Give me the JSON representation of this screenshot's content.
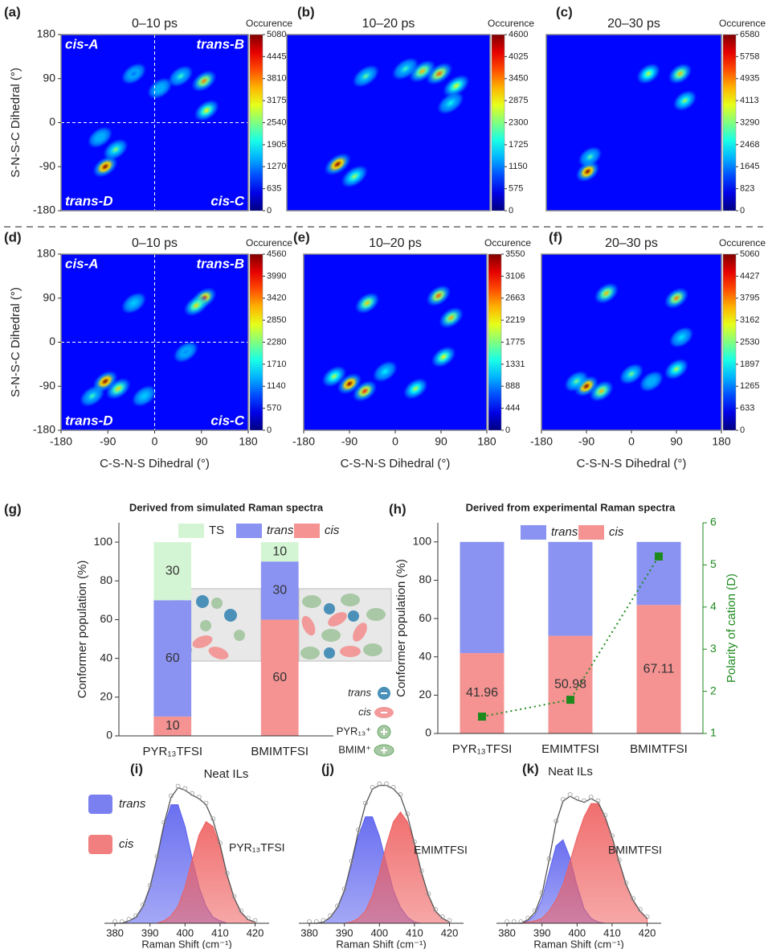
{
  "chart_data": [
    {
      "type": "heatmap",
      "panel": "(a)",
      "title": "0–10 ps",
      "colorbar_title": "Occurence",
      "colormap": "jet",
      "xlim": [
        -180,
        180
      ],
      "ylim": [
        -180,
        180
      ],
      "yticks": [
        -180,
        -90,
        0,
        90,
        180
      ],
      "ylabel": "S-N-S-C Dihedral (°)",
      "annotations": [
        "cis-A",
        "trans-B",
        "trans-D",
        "cis-C"
      ],
      "crosshair": true,
      "x": [
        -95,
        -75,
        -105,
        95,
        100,
        50,
        10,
        -40
      ],
      "y": [
        -90,
        -55,
        -30,
        85,
        25,
        95,
        70,
        100
      ],
      "values": [
        5080,
        2600,
        1500,
        3800,
        3200,
        2200,
        1500,
        1200
      ],
      "colorbar_lim": [
        0,
        5080
      ],
      "colorbar_ticks": [
        0,
        635,
        1270,
        1905,
        2540,
        3175,
        3810,
        4445,
        5080
      ]
    },
    {
      "type": "heatmap",
      "panel": "(b)",
      "title": "10–20 ps",
      "colorbar_title": "Occurence",
      "colormap": "jet",
      "xlim": [
        -180,
        180
      ],
      "ylim": [
        -180,
        180
      ],
      "x": [
        -90,
        -60,
        90,
        60,
        120,
        -40,
        30,
        110
      ],
      "y": [
        -85,
        -110,
        100,
        105,
        75,
        95,
        110,
        40
      ],
      "values": [
        4600,
        2500,
        3600,
        3200,
        2800,
        2200,
        2000,
        1800
      ],
      "colorbar_lim": [
        0,
        4600
      ],
      "colorbar_ticks": [
        0,
        575,
        1150,
        1725,
        2300,
        2875,
        3450,
        4025,
        4600
      ]
    },
    {
      "type": "heatmap",
      "panel": "(c)",
      "title": "20–30 ps",
      "colorbar_title": "Occurence",
      "colormap": "jet",
      "xlim": [
        -180,
        180
      ],
      "ylim": [
        -180,
        180
      ],
      "x": [
        -95,
        30,
        95,
        105,
        -90
      ],
      "y": [
        -100,
        100,
        100,
        45,
        -70
      ],
      "values": [
        6580,
        3800,
        4500,
        3500,
        3000
      ],
      "colorbar_lim": [
        0,
        6580
      ],
      "colorbar_ticks": [
        0,
        823,
        1645,
        2468,
        3290,
        4113,
        4935,
        5758,
        6580
      ]
    },
    {
      "type": "heatmap",
      "panel": "(d)",
      "title": "0–10 ps",
      "colorbar_title": "Occurence",
      "colormap": "jet",
      "xlim": [
        -180,
        180
      ],
      "ylim": [
        -180,
        180
      ],
      "xticks": [
        -180,
        -90,
        0,
        90,
        180
      ],
      "yticks": [
        -180,
        -90,
        0,
        90,
        180
      ],
      "xlabel": "C-S-N-S Dihedral (°)",
      "ylabel": "S-N-S-C Dihedral (°)",
      "annotations": [
        "cis-A",
        "trans-B",
        "trans-D",
        "cis-C"
      ],
      "crosshair": true,
      "x": [
        -95,
        -70,
        -120,
        95,
        80,
        -40,
        60,
        -20
      ],
      "y": [
        -80,
        -95,
        -110,
        90,
        75,
        80,
        -20,
        -110
      ],
      "values": [
        4560,
        3000,
        2000,
        4000,
        3000,
        1500,
        1200,
        1500
      ],
      "colorbar_lim": [
        0,
        4560
      ],
      "colorbar_ticks": [
        0,
        570,
        1140,
        1710,
        2280,
        2850,
        3420,
        3990,
        4560
      ]
    },
    {
      "type": "heatmap",
      "panel": "(e)",
      "title": "10–20 ps",
      "colorbar_title": "Occurence",
      "colormap": "jet",
      "xlim": [
        -180,
        180
      ],
      "ylim": [
        -180,
        180
      ],
      "xticks": [
        -180,
        -90,
        0,
        90,
        180
      ],
      "xlabel": "C-S-N-S Dihedral (°)",
      "x": [
        -90,
        -60,
        -120,
        -55,
        85,
        110,
        95,
        40,
        -20
      ],
      "y": [
        -85,
        -100,
        -70,
        80,
        95,
        50,
        -30,
        -95,
        -60
      ],
      "values": [
        3550,
        3000,
        2000,
        2400,
        2800,
        2500,
        2200,
        2000,
        1300
      ],
      "colorbar_lim": [
        0,
        3550
      ],
      "colorbar_ticks": [
        0,
        444,
        888,
        1331,
        1775,
        2219,
        2663,
        3106,
        3550
      ]
    },
    {
      "type": "heatmap",
      "panel": "(f)",
      "title": "20–30 ps",
      "colorbar_title": "Occurence",
      "colormap": "jet",
      "xlim": [
        -180,
        180
      ],
      "ylim": [
        -180,
        180
      ],
      "xticks": [
        -180,
        -90,
        0,
        90,
        180
      ],
      "xlabel": "C-S-N-S Dihedral (°)",
      "x": [
        -90,
        -60,
        -110,
        -50,
        90,
        0,
        90,
        100,
        40
      ],
      "y": [
        -90,
        -100,
        -80,
        100,
        90,
        -65,
        -55,
        10,
        -80
      ],
      "values": [
        5060,
        3500,
        2500,
        3500,
        3800,
        2500,
        2800,
        1800,
        1500
      ],
      "colorbar_lim": [
        0,
        5060
      ],
      "colorbar_ticks": [
        0,
        633,
        1265,
        1897,
        2530,
        3162,
        3795,
        4427,
        5060
      ]
    },
    {
      "type": "stacked_bar",
      "panel": "(g)",
      "title": "Derived from simulated Raman spectra",
      "ylabel": "Conformer population (%)",
      "xlabel": "Neat ILs",
      "categories": [
        "PYR₁₃TFSI",
        "BMIMTFSI"
      ],
      "series": [
        {
          "name": "TS",
          "color": "#d4f5d4",
          "italic": false,
          "show_labels": true,
          "values": [
            30,
            10
          ]
        },
        {
          "name": "trans",
          "color": "#8a93f2",
          "italic": true,
          "show_labels": true,
          "values": [
            60,
            30
          ]
        },
        {
          "name": "cis",
          "color": "#f59393",
          "italic": true,
          "show_labels": true,
          "values": [
            10,
            60
          ]
        }
      ],
      "ylim": [
        0,
        110
      ],
      "yticks": [
        0,
        20,
        40,
        60,
        80,
        100
      ],
      "inset_legend": [
        "trans",
        "cis",
        "PYR₁₃⁺",
        "BMIM⁺"
      ]
    },
    {
      "type": "stacked_bar",
      "panel": "(h)",
      "title": "Derived from experimental Raman spectra",
      "ylabel": "Conformer population (%)",
      "xlabel": "Neat ILs",
      "categories": [
        "PYR₁₃TFSI",
        "EMIMTFSI",
        "BMIMTFSI"
      ],
      "series": [
        {
          "name": "trans",
          "color": "#8a93f2",
          "italic": true,
          "show_labels": false,
          "values": [
            58.04,
            49.02,
            32.89
          ]
        },
        {
          "name": "cis",
          "color": "#f59393",
          "italic": true,
          "show_labels": true,
          "values": [
            41.96,
            50.98,
            67.11
          ]
        }
      ],
      "ylim": [
        0,
        110
      ],
      "yticks": [
        0,
        20,
        40,
        60,
        80,
        100
      ],
      "y2label": "Polarity of cation (D)",
      "y2lim": [
        1,
        6
      ],
      "y2ticks": [
        1,
        2,
        3,
        4,
        5,
        6
      ],
      "y2_series": {
        "color": "#1e8a1e",
        "values": [
          1.4,
          1.8,
          5.2
        ]
      }
    },
    {
      "type": "raman_fit",
      "panel": "(i)",
      "sample": "PYR₁₃TFSI",
      "xlabel": "Raman Shift (cm⁻¹)",
      "legend": true,
      "xlim": [
        377,
        424
      ],
      "xticks": [
        380,
        390,
        400,
        410,
        420
      ],
      "ylim": [
        0,
        1.25
      ],
      "x": [
        380,
        382,
        384,
        386,
        388,
        390,
        392,
        394,
        396,
        398,
        400,
        402,
        404,
        406,
        408,
        410,
        412,
        414,
        416,
        418,
        420
      ],
      "series": [
        {
          "name": "trans",
          "color": "#5a60ee",
          "values": [
            0,
            0,
            0.02,
            0.05,
            0.14,
            0.3,
            0.54,
            0.8,
            0.98,
            0.98,
            0.8,
            0.54,
            0.3,
            0.14,
            0.05,
            0.02,
            0,
            0,
            0,
            0,
            0
          ]
        },
        {
          "name": "cis",
          "color": "#ef5f5f",
          "values": [
            0,
            0,
            0,
            0,
            0,
            0,
            0,
            0.02,
            0.06,
            0.14,
            0.3,
            0.52,
            0.73,
            0.84,
            0.8,
            0.63,
            0.4,
            0.21,
            0.09,
            0.03,
            0.01
          ]
        }
      ],
      "fit_color": "#555555",
      "fit_values": [
        0,
        0,
        0.02,
        0.05,
        0.14,
        0.3,
        0.54,
        0.82,
        1.04,
        1.12,
        1.1,
        1.06,
        1.03,
        0.98,
        0.85,
        0.65,
        0.4,
        0.21,
        0.09,
        0.03,
        0.01
      ]
    },
    {
      "type": "raman_fit",
      "panel": "(j)",
      "sample": "EMIMTFSI",
      "xlabel": "Raman Shift (cm⁻¹)",
      "legend": false,
      "xlim": [
        377,
        424
      ],
      "xticks": [
        380,
        390,
        400,
        410,
        420
      ],
      "ylim": [
        0,
        1.25
      ],
      "x": [
        380,
        382,
        384,
        386,
        388,
        390,
        392,
        394,
        396,
        398,
        400,
        402,
        404,
        406,
        408,
        410,
        412,
        414,
        416,
        418,
        420
      ],
      "series": [
        {
          "name": "trans",
          "color": "#5a60ee",
          "values": [
            0,
            0,
            0.01,
            0.05,
            0.13,
            0.27,
            0.49,
            0.72,
            0.88,
            0.88,
            0.72,
            0.49,
            0.27,
            0.13,
            0.05,
            0.01,
            0,
            0,
            0,
            0,
            0
          ]
        },
        {
          "name": "cis",
          "color": "#ef5f5f",
          "values": [
            0,
            0,
            0,
            0,
            0,
            0,
            0.01,
            0.04,
            0.1,
            0.23,
            0.42,
            0.65,
            0.84,
            0.92,
            0.84,
            0.65,
            0.42,
            0.23,
            0.1,
            0.04,
            0.01
          ]
        }
      ],
      "fit_color": "#555555",
      "fit_values": [
        0,
        0,
        0.01,
        0.05,
        0.13,
        0.27,
        0.5,
        0.76,
        0.98,
        1.11,
        1.14,
        1.14,
        1.11,
        1.05,
        0.89,
        0.66,
        0.42,
        0.23,
        0.1,
        0.04,
        0.01
      ]
    },
    {
      "type": "raman_fit",
      "panel": "(k)",
      "sample": "BMIMTFSI",
      "xlabel": "Raman Shift (cm⁻¹)",
      "legend": false,
      "xlim": [
        377,
        424
      ],
      "xticks": [
        380,
        390,
        400,
        410,
        420
      ],
      "ylim": [
        0,
        1.25
      ],
      "x": [
        380,
        382,
        384,
        386,
        388,
        390,
        392,
        394,
        396,
        398,
        400,
        402,
        404,
        406,
        408,
        410,
        412,
        414,
        416,
        418,
        420
      ],
      "series": [
        {
          "name": "trans",
          "color": "#5a60ee",
          "values": [
            0,
            0,
            0,
            0.02,
            0.07,
            0.2,
            0.42,
            0.64,
            0.69,
            0.54,
            0.31,
            0.12,
            0.04,
            0.01,
            0,
            0,
            0,
            0,
            0,
            0,
            0
          ]
        },
        {
          "name": "cis",
          "color": "#ef5f5f",
          "values": [
            0,
            0,
            0,
            0.01,
            0.02,
            0.04,
            0.1,
            0.19,
            0.32,
            0.51,
            0.71,
            0.88,
            0.99,
            0.99,
            0.88,
            0.71,
            0.51,
            0.32,
            0.19,
            0.1,
            0.04
          ]
        }
      ],
      "fit_color": "#555555",
      "fit_values": [
        0,
        0,
        0,
        0.03,
        0.09,
        0.24,
        0.52,
        0.83,
        1.01,
        1.05,
        1.02,
        1.0,
        1.03,
        1.0,
        0.88,
        0.71,
        0.51,
        0.32,
        0.19,
        0.1,
        0.04
      ]
    }
  ]
}
